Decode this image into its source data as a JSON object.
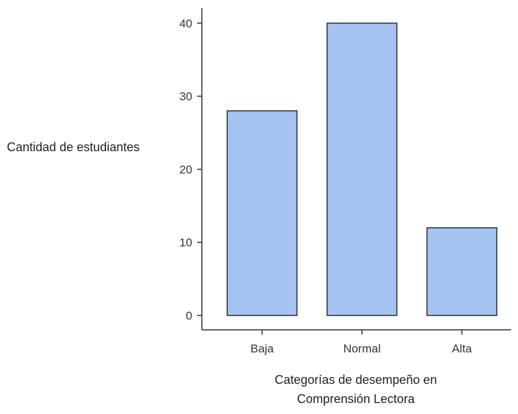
{
  "chart_data": {
    "type": "bar",
    "categories": [
      "Baja",
      "Normal",
      "Alta"
    ],
    "values": [
      28,
      40,
      12
    ],
    "title": "",
    "xlabel_lines": [
      "Categorías de desempeño en",
      "Comprensión Lectora"
    ],
    "ylabel": "Cantidad de estudiantes",
    "ylim": [
      0,
      42
    ],
    "yticks": [
      0,
      10,
      20,
      30,
      40
    ],
    "grid": false,
    "legend": "none",
    "colors": {
      "bar_fill": "#a5c3f0",
      "bar_stroke": "#2b2b2b",
      "axis": "#2b2b2b",
      "text": "#333333"
    }
  }
}
